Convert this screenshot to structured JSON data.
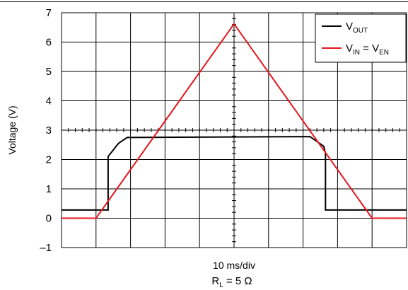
{
  "chart_data": {
    "type": "line",
    "ylabel": "Voltage (V)",
    "xlabel": "10 ms/div",
    "annotation": {
      "main": "R",
      "sub": "L",
      "rest": " = 5 Ω"
    },
    "ylim": [
      -1,
      7
    ],
    "yticks": [
      "–1",
      "0",
      "1",
      "2",
      "3",
      "4",
      "5",
      "6",
      "7"
    ],
    "xlim": [
      -50,
      50
    ],
    "xdivisions": 10,
    "grid": true,
    "legend_position": "top-right",
    "series": [
      {
        "name": "V_OUT",
        "legend": {
          "main": "V",
          "sub": "OUT",
          "rest": ""
        },
        "color": "#000000",
        "x": [
          -50,
          -36.5,
          -36.5,
          -33.5,
          -31,
          22,
          26,
          26.5,
          26.5,
          50
        ],
        "y": [
          0.28,
          0.28,
          2.1,
          2.55,
          2.75,
          2.78,
          2.45,
          2.2,
          0.28,
          0.28
        ]
      },
      {
        "name": "V_IN = V_EN",
        "legend": {
          "main": "V",
          "sub": "IN",
          "rest": " = V",
          "sub2": "EN"
        },
        "color": "#e8141c",
        "x": [
          -50,
          -40,
          0,
          40,
          50
        ],
        "y": [
          0,
          0,
          6.62,
          0,
          0
        ]
      }
    ]
  }
}
